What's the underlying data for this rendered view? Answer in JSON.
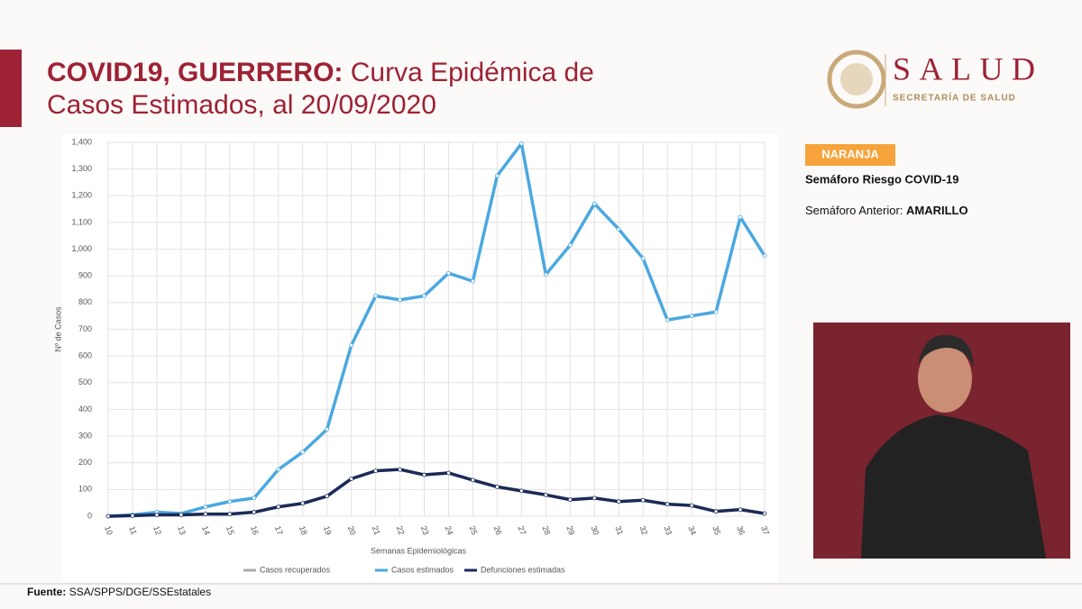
{
  "header": {
    "title_bold": "COVID19, GUERRERO:",
    "title": "Curva Epidémica de",
    "title_line2": "Casos Estimados, al 20/09/2020"
  },
  "logo": {
    "name": "SALUD",
    "subtitle": "SECRETARÍA DE SALUD"
  },
  "panel": {
    "badge": "NARANJA",
    "risk": "Semáforo Riesgo COVID-19",
    "previous_label": "Semáforo Anterior:",
    "previous_value": "AMARILLO"
  },
  "source": {
    "label": "Fuente:",
    "text": "SSA/SPPS/DGE/SSEstatales"
  },
  "chart_data": {
    "type": "line",
    "x_label": "Semanas Epidemiológicas",
    "y_label": "Nº de Casos",
    "categories": [
      "10",
      "11",
      "12",
      "13",
      "14",
      "15",
      "16",
      "17",
      "18",
      "19",
      "20",
      "21",
      "22",
      "23",
      "24",
      "25",
      "26",
      "27",
      "28",
      "29",
      "30",
      "31",
      "32",
      "33",
      "34",
      "35",
      "36",
      "37"
    ],
    "series": [
      {
        "name": "Casos recuperados",
        "color": "#aaaaaa",
        "values": [
          null,
          null,
          null,
          null,
          null,
          null,
          null,
          null,
          null,
          null,
          null,
          null,
          null,
          null,
          null,
          null,
          null,
          null,
          null,
          null,
          null,
          null,
          null,
          null,
          null,
          null,
          null,
          null
        ]
      },
      {
        "name": "Casos estimados",
        "color": "#4aa8e0",
        "values": [
          0,
          5,
          15,
          10,
          35,
          55,
          68,
          175,
          240,
          325,
          640,
          825,
          810,
          825,
          910,
          880,
          1275,
          1395,
          905,
          1015,
          1170,
          1075,
          965,
          735,
          750,
          765,
          1120,
          975
        ]
      },
      {
        "name": "Defunciones estimadas",
        "color": "#1b2a57",
        "values": [
          0,
          2,
          5,
          5,
          8,
          8,
          15,
          35,
          48,
          75,
          140,
          170,
          175,
          155,
          162,
          135,
          110,
          95,
          80,
          62,
          68,
          55,
          60,
          45,
          40,
          18,
          25,
          10
        ]
      }
    ],
    "ylim": [
      0,
      1400
    ],
    "yticks": [
      0,
      100,
      200,
      300,
      400,
      500,
      600,
      700,
      800,
      900,
      {
        "value": 1000,
        "label": "1,000"
      },
      {
        "value": 1100,
        "label": "1,100"
      },
      {
        "value": 1200,
        "label": "1,200"
      },
      {
        "value": 1300,
        "label": "1,300"
      },
      {
        "value": 1400,
        "label": "1,400"
      }
    ],
    "grid": true
  }
}
